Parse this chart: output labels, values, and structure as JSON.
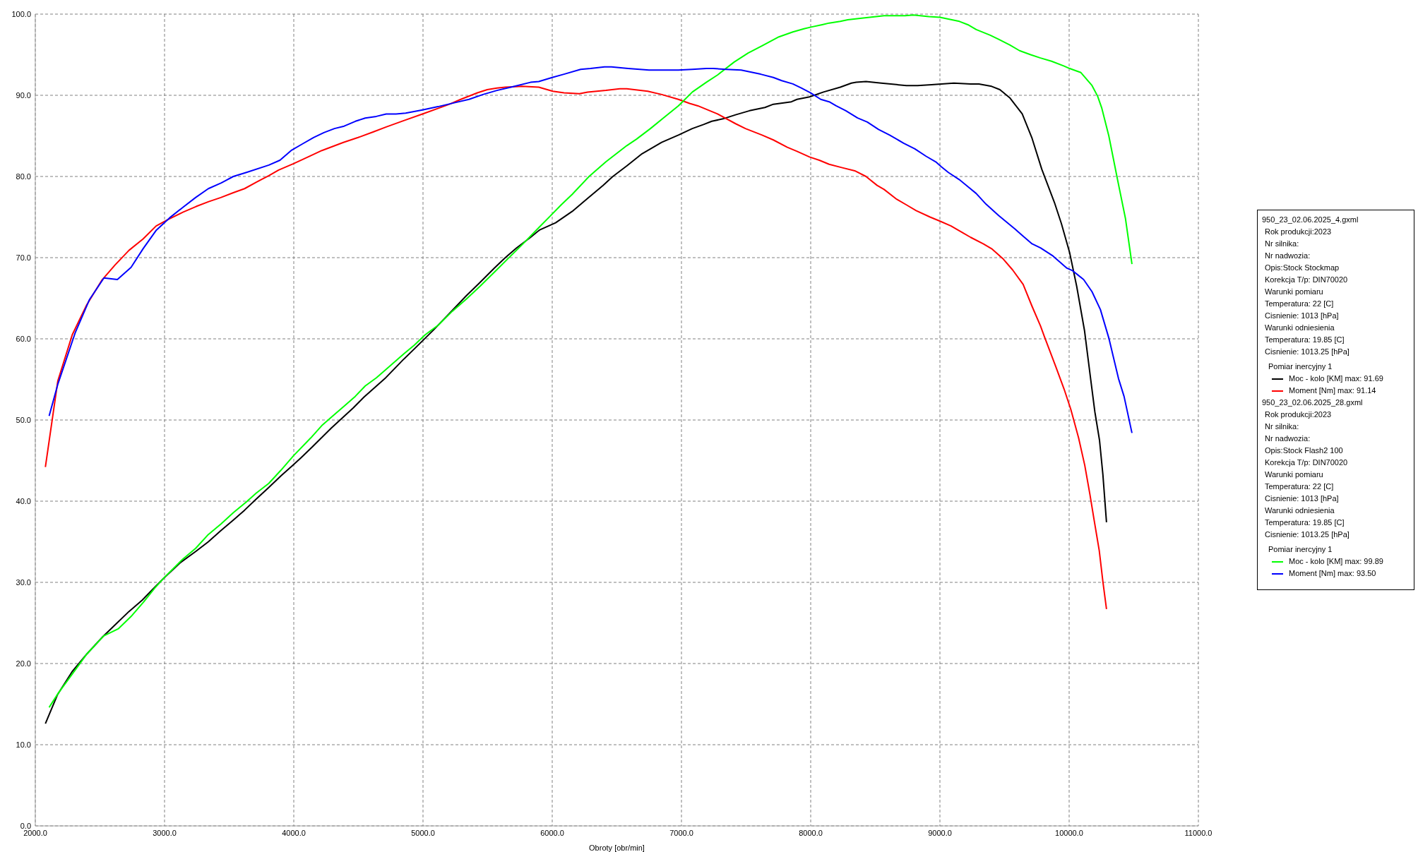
{
  "chart_data": {
    "type": "line",
    "xlabel": "Obroty [obr/min]",
    "xlim": [
      2000,
      11000
    ],
    "xticks": [
      {
        "value": 2000,
        "label": "2000.0"
      },
      {
        "value": 3000,
        "label": "3000.0"
      },
      {
        "value": 4000,
        "label": "4000.0"
      },
      {
        "value": 5000,
        "label": "5000.0"
      },
      {
        "value": 6000,
        "label": "6000.0"
      },
      {
        "value": 7000,
        "label": "7000.0"
      },
      {
        "value": 8000,
        "label": "8000.0"
      },
      {
        "value": 9000,
        "label": "9000.0"
      },
      {
        "value": 10000,
        "label": "10000.0"
      },
      {
        "value": 11000,
        "label": "11000.0"
      }
    ],
    "ylim": [
      0,
      100
    ],
    "yticks": [
      {
        "value": 0,
        "label": "0.0"
      },
      {
        "value": 10,
        "label": "10.0"
      },
      {
        "value": 20,
        "label": "20.0"
      },
      {
        "value": 30,
        "label": "30.0"
      },
      {
        "value": 40,
        "label": "40.0"
      },
      {
        "value": 50,
        "label": "50.0"
      },
      {
        "value": 60,
        "label": "60.0"
      },
      {
        "value": 70,
        "label": "70.0"
      },
      {
        "value": 80,
        "label": "80.0"
      },
      {
        "value": 90,
        "label": "90.0"
      },
      {
        "value": 100,
        "label": "100.0"
      }
    ],
    "grid": true,
    "legend": "right",
    "marker": "none",
    "annotations": [
      "950_23_02.06.2025_4.gxml",
      "Rok produkcji:2023",
      "Nr silnika:",
      "Nr nadwozia:",
      "Opis:Stock Stockmap",
      "Korekcja T/p: DIN70020",
      "Warunki pomiaru",
      "Temperatura: 22 [C]",
      "Cisnienie: 1013 [hPa]",
      "Warunki odniesienia",
      "Temperatura: 19.85 [C]",
      "Cisnienie: 1013.25 [hPa]",
      "Pomiar inercyjny 1",
      "950_23_02.06.2025_28.gxml",
      "Rok produkcji:2023",
      "Nr silnika:",
      "Nr nadwozia:",
      "Opis:Stock Flash2 100",
      "Korekcja T/p: DIN70020",
      "Warunki pomiaru",
      "Temperatura: 22 [C]",
      "Cisnienie: 1013 [hPa]",
      "Warunki odniesienia",
      "Temperatura: 19.85 [C]",
      "Cisnienie: 1013.25 [hPa]",
      "Pomiar inercyjny 1"
    ],
    "series": [
      {
        "name": "Moc - kolo [KM] max: 91.69",
        "color": "#000000",
        "x": [
          2078,
          2173,
          2285,
          2400,
          2522,
          2620,
          2724,
          2827,
          2912,
          2993,
          3120,
          3241,
          3339,
          3437,
          3534,
          3620,
          3705,
          3807,
          3900,
          3998,
          4059,
          4144,
          4290,
          4461,
          4542,
          4705,
          4845,
          4942,
          5082,
          5227,
          5335,
          5432,
          5551,
          5637,
          5724,
          5832,
          5901,
          6026,
          6155,
          6274,
          6393,
          6469,
          6577,
          6695,
          6847,
          6976,
          7084,
          7171,
          7235,
          7322,
          7419,
          7527,
          7646,
          7711,
          7851,
          7894,
          7991,
          8099,
          8229,
          8315,
          8352,
          8428,
          8546,
          8741,
          8827,
          8935,
          9108,
          9238,
          9302,
          9400,
          9464,
          9540,
          9637,
          9713,
          9788,
          9886,
          9940,
          10004,
          10058,
          10119,
          10166,
          10199,
          10235,
          10261,
          10289
        ],
        "values": [
          12.6,
          16.2,
          19.0,
          21.2,
          23.3,
          24.8,
          26.4,
          27.8,
          29.2,
          30.5,
          32.4,
          33.8,
          35.0,
          36.4,
          37.7,
          38.9,
          40.2,
          41.7,
          43.1,
          44.5,
          45.4,
          46.7,
          49.0,
          51.5,
          52.8,
          55.1,
          57.4,
          58.9,
          61.1,
          63.5,
          65.3,
          66.8,
          68.7,
          70.0,
          71.2,
          72.5,
          73.4,
          74.3,
          75.7,
          77.3,
          78.9,
          80.0,
          81.3,
          82.8,
          84.2,
          85.1,
          85.9,
          86.4,
          86.8,
          87.1,
          87.6,
          88.1,
          88.5,
          88.9,
          89.2,
          89.5,
          89.8,
          90.4,
          91.0,
          91.5,
          91.6,
          91.7,
          91.5,
          91.2,
          91.2,
          91.3,
          91.5,
          91.4,
          91.4,
          91.1,
          90.7,
          89.7,
          87.7,
          84.7,
          80.9,
          76.8,
          74.2,
          70.6,
          66.5,
          61.0,
          55.1,
          51.0,
          47.5,
          43.3,
          37.4
        ]
      },
      {
        "name": "Moment [Nm] max: 91.14",
        "color": "#ff0000",
        "x": [
          2078,
          2174,
          2286,
          2395,
          2514,
          2617,
          2725,
          2834,
          2935,
          3028,
          3142,
          3244,
          3342,
          3435,
          3532,
          3619,
          3710,
          3807,
          3883,
          4001,
          4110,
          4218,
          4384,
          4498,
          4617,
          4715,
          4855,
          4996,
          5119,
          5205,
          5292,
          5421,
          5497,
          5572,
          5637,
          5767,
          5896,
          6004,
          6091,
          6210,
          6274,
          6415,
          6523,
          6577,
          6739,
          6847,
          6976,
          7063,
          7127,
          7279,
          7419,
          7495,
          7624,
          7711,
          7819,
          7894,
          7991,
          8067,
          8143,
          8240,
          8341,
          8428,
          8514,
          8568,
          8665,
          8741,
          8816,
          8924,
          9000,
          9086,
          9173,
          9238,
          9335,
          9400,
          9486,
          9562,
          9644,
          9713,
          9778,
          9810,
          9896,
          9961,
          10013,
          10073,
          10121,
          10160,
          10192,
          10233,
          10261,
          10289
        ],
        "values": [
          44.2,
          54.8,
          60.5,
          64.1,
          67.2,
          69.1,
          70.9,
          72.3,
          73.9,
          74.7,
          75.6,
          76.3,
          76.9,
          77.4,
          78.0,
          78.5,
          79.3,
          80.1,
          80.8,
          81.6,
          82.4,
          83.2,
          84.2,
          84.8,
          85.5,
          86.1,
          86.9,
          87.7,
          88.4,
          88.9,
          89.5,
          90.3,
          90.7,
          90.9,
          91.0,
          91.1,
          91.0,
          90.5,
          90.3,
          90.2,
          90.4,
          90.6,
          90.8,
          90.8,
          90.5,
          90.1,
          89.5,
          89.0,
          88.7,
          87.7,
          86.5,
          85.9,
          85.1,
          84.5,
          83.6,
          83.1,
          82.4,
          82.0,
          81.5,
          81.1,
          80.7,
          80.0,
          78.9,
          78.4,
          77.2,
          76.5,
          75.8,
          75.0,
          74.5,
          73.9,
          73.1,
          72.5,
          71.7,
          71.1,
          69.9,
          68.5,
          66.7,
          64.0,
          61.6,
          60.2,
          56.6,
          53.8,
          51.3,
          47.8,
          44.4,
          40.9,
          37.8,
          33.9,
          30.1,
          26.7
        ]
      },
      {
        "name": "Moc - kolo [KM] max: 99.89",
        "color": "#00ff00",
        "x": [
          2107,
          2180,
          2290,
          2400,
          2529,
          2644,
          2741,
          2839,
          2924,
          2998,
          3144,
          3241,
          3339,
          3437,
          3534,
          3632,
          3710,
          3807,
          3900,
          3998,
          4132,
          4216,
          4302,
          4389,
          4475,
          4553,
          4639,
          4705,
          4855,
          4931,
          5017,
          5119,
          5227,
          5335,
          5443,
          5551,
          5659,
          5767,
          5896,
          5983,
          6069,
          6155,
          6285,
          6415,
          6577,
          6652,
          6760,
          6868,
          6976,
          7084,
          7192,
          7279,
          7408,
          7516,
          7624,
          7754,
          7862,
          7948,
          8002,
          8089,
          8143,
          8229,
          8287,
          8395,
          8568,
          8730,
          8795,
          8914,
          9000,
          9151,
          9216,
          9281,
          9389,
          9454,
          9540,
          9616,
          9702,
          9778,
          9864,
          9961,
          10004,
          10091,
          10177,
          10220,
          10253,
          10307,
          10372,
          10436,
          10486
        ],
        "values": [
          14.6,
          16.4,
          18.8,
          21.2,
          23.4,
          24.3,
          25.8,
          27.6,
          29.3,
          30.6,
          32.9,
          34.2,
          35.9,
          37.2,
          38.6,
          39.9,
          41.0,
          42.2,
          43.8,
          45.6,
          47.8,
          49.3,
          50.5,
          51.7,
          52.9,
          54.2,
          55.2,
          56.1,
          58.2,
          59.2,
          60.5,
          61.7,
          63.4,
          64.9,
          66.5,
          68.2,
          69.9,
          71.6,
          73.7,
          75.1,
          76.5,
          77.8,
          80.0,
          81.8,
          83.8,
          84.6,
          85.9,
          87.3,
          88.7,
          90.4,
          91.6,
          92.5,
          94.1,
          95.2,
          96.1,
          97.2,
          97.8,
          98.2,
          98.4,
          98.7,
          98.9,
          99.1,
          99.3,
          99.5,
          99.8,
          99.8,
          99.9,
          99.7,
          99.6,
          99.1,
          98.7,
          98.1,
          97.4,
          96.9,
          96.2,
          95.5,
          95.0,
          94.6,
          94.2,
          93.6,
          93.3,
          92.8,
          91.2,
          89.9,
          88.4,
          85.0,
          79.8,
          74.8,
          69.2
        ]
      },
      {
        "name": "Moment [Nm] max: 93.50",
        "color": "#0000ff",
        "x": [
          2107,
          2174,
          2310,
          2418,
          2531,
          2635,
          2741,
          2834,
          2937,
          3039,
          3142,
          3240,
          3339,
          3439,
          3532,
          3634,
          3807,
          3893,
          3980,
          4066,
          4153,
          4233,
          4315,
          4390,
          4477,
          4553,
          4639,
          4715,
          4791,
          4866,
          4996,
          5116,
          5248,
          5356,
          5464,
          5572,
          5680,
          5832,
          5896,
          6000,
          6091,
          6220,
          6296,
          6404,
          6458,
          6587,
          6749,
          6976,
          7084,
          7192,
          7246,
          7343,
          7462,
          7613,
          7711,
          7776,
          7862,
          7927,
          8000,
          8078,
          8143,
          8197,
          8272,
          8363,
          8438,
          8525,
          8611,
          8719,
          8806,
          8892,
          8968,
          9011,
          9065,
          9151,
          9227,
          9281,
          9356,
          9454,
          9583,
          9626,
          9713,
          9778,
          9875,
          9983,
          10026,
          10112,
          10177,
          10242,
          10307,
          10382,
          10425,
          10486
        ],
        "values": [
          50.5,
          54.4,
          60.8,
          64.8,
          67.5,
          67.3,
          68.8,
          71.1,
          73.4,
          74.9,
          76.2,
          77.4,
          78.5,
          79.2,
          80.0,
          80.5,
          81.4,
          82.0,
          83.2,
          84.0,
          84.8,
          85.4,
          85.9,
          86.2,
          86.8,
          87.2,
          87.4,
          87.7,
          87.7,
          87.8,
          88.2,
          88.6,
          89.1,
          89.5,
          90.1,
          90.6,
          91.0,
          91.6,
          91.7,
          92.2,
          92.6,
          93.2,
          93.3,
          93.5,
          93.5,
          93.3,
          93.1,
          93.1,
          93.2,
          93.3,
          93.3,
          93.2,
          93.1,
          92.6,
          92.2,
          91.8,
          91.4,
          90.9,
          90.3,
          89.5,
          89.2,
          88.7,
          88.1,
          87.2,
          86.7,
          85.8,
          85.1,
          84.1,
          83.4,
          82.5,
          81.8,
          81.2,
          80.5,
          79.6,
          78.6,
          77.9,
          76.6,
          75.2,
          73.5,
          72.9,
          71.7,
          71.2,
          70.2,
          68.7,
          68.4,
          67.3,
          65.8,
          63.6,
          60.1,
          55.1,
          52.9,
          48.4
        ]
      }
    ]
  }
}
